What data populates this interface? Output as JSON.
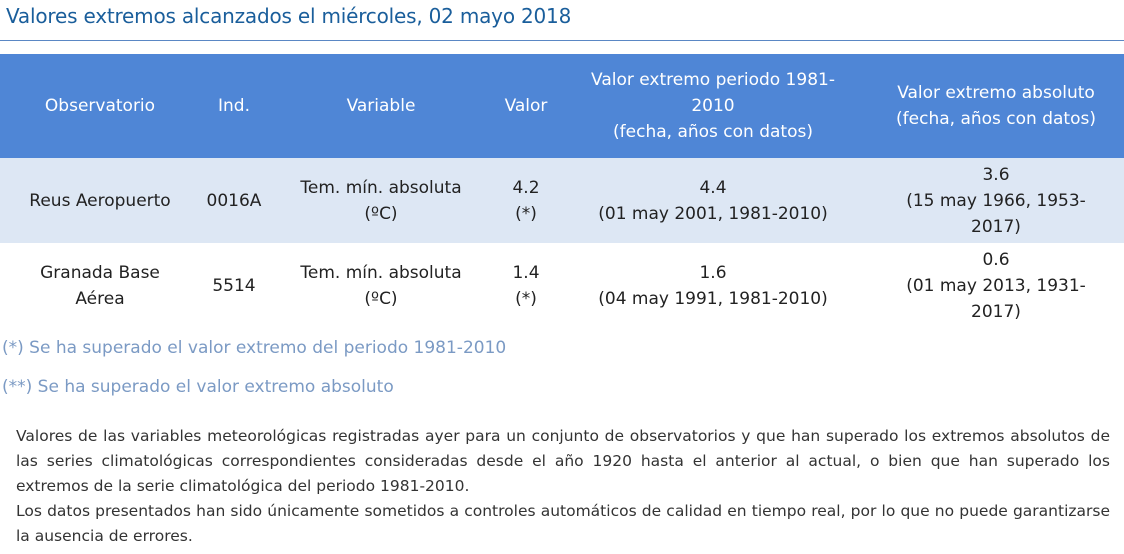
{
  "page": {
    "title": "Valores extremos alcanzados el miércoles, 02 mayo 2018"
  },
  "table": {
    "headers": {
      "observatorio": "Observatorio",
      "ind": "Ind.",
      "variable": "Variable",
      "valor": "Valor",
      "periodo_line1": "Valor extremo periodo 1981-",
      "periodo_line2": "2010",
      "periodo_line3": "(fecha, años con datos)",
      "absoluto_line1": "Valor extremo absoluto",
      "absoluto_line2": "(fecha, años con datos)"
    },
    "rows": [
      {
        "observatorio": "Reus Aeropuerto",
        "ind": "0016A",
        "variable_line1": "Tem. mín. absoluta",
        "variable_line2": "(ºC)",
        "valor_line1": "4.2",
        "valor_line2": "(*)",
        "periodo_line1": "4.4",
        "periodo_line2": "(01 may 2001, 1981-2010)",
        "absoluto_line1": "3.6",
        "absoluto_line2": "(15 may 1966, 1953-",
        "absoluto_line3": "2017)"
      },
      {
        "observatorio_line1": "Granada Base",
        "observatorio_line2": "Aérea",
        "ind": "5514",
        "variable_line1": "Tem. mín. absoluta",
        "variable_line2": "(ºC)",
        "valor_line1": "1.4",
        "valor_line2": "(*)",
        "periodo_line1": "1.6",
        "periodo_line2": "(04 may 1991, 1981-2010)",
        "absoluto_line1": "0.6",
        "absoluto_line2": "(01 may 2013, 1931-",
        "absoluto_line3": "2017)"
      }
    ]
  },
  "notes": {
    "note1": "(*) Se ha superado el valor extremo del periodo 1981-2010",
    "note2": "(**) Se ha superado el valor extremo absoluto"
  },
  "description": {
    "paragraph1": "Valores de las variables meteorológicas registradas ayer para un conjunto de observatorios y que han superado los extremos absolutos de las series climatológicas correspondientes consideradas desde el año 1920 hasta el anterior al actual, o bien que han superado los extremos de la serie climatológica del periodo 1981-2010.",
    "paragraph2": "Los datos presentados han sido únicamente sometidos a controles automáticos de calidad en tiempo real, por lo que no puede garantizarse la ausencia de errores."
  },
  "colors": {
    "title": "#1a5e9b",
    "header_bg": "#4f86d6",
    "row_alt_bg": "#dde7f4",
    "notes": "#7b9ac4"
  }
}
